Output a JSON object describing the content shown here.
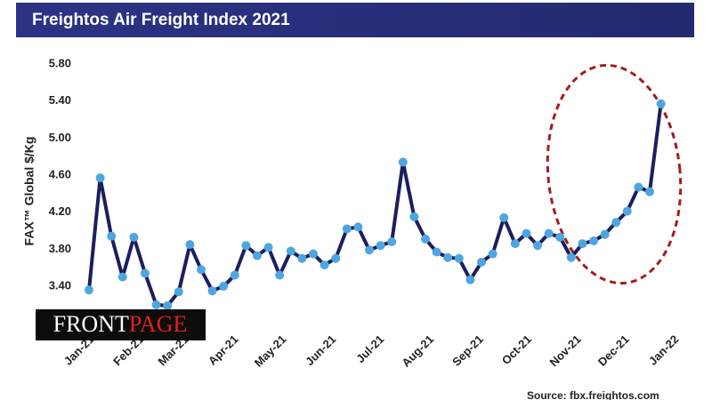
{
  "chart_data": {
    "type": "line",
    "title": "Freightos Air Freight Index 2021",
    "y_label": "FAX™ Global $/Kg",
    "source": "Source: fbx.freightos.com",
    "watermark": [
      "FRONT",
      "PAGE"
    ],
    "x": [
      0,
      1,
      2,
      3,
      4,
      5,
      6,
      7,
      8,
      9,
      10,
      11,
      12,
      13,
      14,
      15,
      16,
      17,
      18,
      19,
      20,
      21,
      22,
      23,
      24,
      25,
      26,
      27,
      28,
      29,
      30,
      31,
      32,
      33,
      34,
      35,
      36,
      37,
      38,
      39,
      40,
      41,
      42,
      43,
      44,
      45,
      46,
      47,
      48,
      49,
      50,
      51
    ],
    "series": [
      {
        "color": "#1b1f5e",
        "marker_color": "#4ea6e0",
        "values": [
          3.36,
          4.57,
          3.94,
          3.5,
          3.93,
          3.54,
          3.2,
          3.19,
          3.34,
          3.85,
          3.58,
          3.35,
          3.4,
          3.52,
          3.84,
          3.73,
          3.82,
          3.52,
          3.78,
          3.7,
          3.75,
          3.63,
          3.7,
          4.02,
          4.04,
          3.79,
          3.84,
          3.88,
          4.74,
          4.15,
          3.91,
          3.77,
          3.71,
          3.7,
          3.47,
          3.66,
          3.75,
          4.14,
          3.86,
          3.97,
          3.84,
          3.97,
          3.93,
          3.71,
          3.86,
          3.89,
          3.96,
          4.09,
          4.21,
          4.47,
          4.42,
          5.37
        ]
      }
    ],
    "xlim": [
      0,
      52.5
    ],
    "xticks": [
      {
        "value": 0,
        "label": "Jan-21"
      },
      {
        "value": 4.43,
        "label": "Feb-21"
      },
      {
        "value": 8.43,
        "label": "Mar-21"
      },
      {
        "value": 12.86,
        "label": "Apr-21"
      },
      {
        "value": 17.14,
        "label": "May-21"
      },
      {
        "value": 21.57,
        "label": "Jun-21"
      },
      {
        "value": 25.86,
        "label": "Jul-21"
      },
      {
        "value": 30.29,
        "label": "Aug-21"
      },
      {
        "value": 34.71,
        "label": "Sep-21"
      },
      {
        "value": 39,
        "label": "Oct-21"
      },
      {
        "value": 43.43,
        "label": "Nov-21"
      },
      {
        "value": 47.71,
        "label": "Dec-21"
      },
      {
        "value": 52.14,
        "label": "Jan-22"
      }
    ],
    "ylim": [
      3.0,
      5.8
    ],
    "yticks": [
      {
        "value": 3.4,
        "label": "3.40"
      },
      {
        "value": 3.8,
        "label": "3.80"
      },
      {
        "value": 4.2,
        "label": "4.20"
      },
      {
        "value": 4.6,
        "label": "4.60"
      },
      {
        "value": 5.0,
        "label": "5.00"
      },
      {
        "value": 5.4,
        "label": "5.40"
      },
      {
        "value": 5.8,
        "label": "5.80"
      }
    ],
    "grid": false
  }
}
